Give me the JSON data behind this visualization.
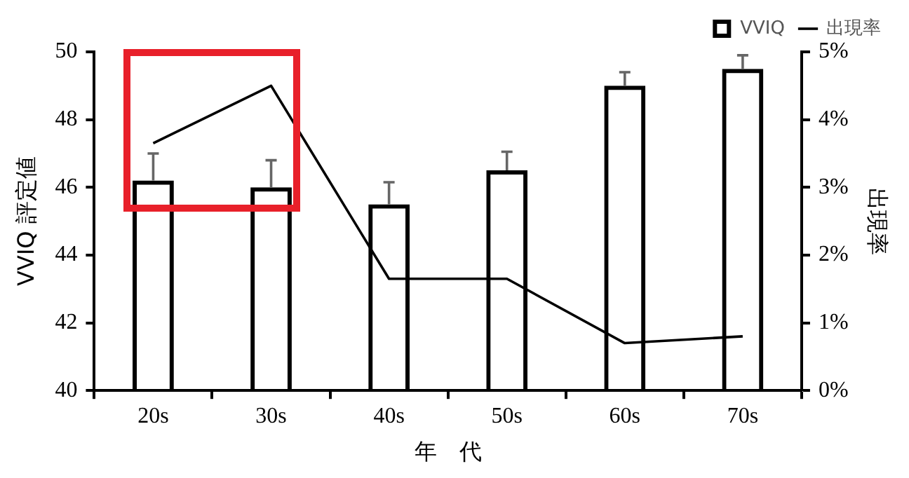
{
  "chart_data": {
    "type": "bar",
    "xlabel": "年　代",
    "ylabel": "VVIQ 評定値",
    "y2label": "出現率",
    "categories": [
      "20s",
      "30s",
      "40s",
      "50s",
      "60s",
      "70s"
    ],
    "series": [
      {
        "name": "VVIQ",
        "color": "#000000",
        "values": [
          46.2,
          46.0,
          45.5,
          46.5,
          49.0,
          49.5
        ],
        "errors": [
          [
            46.2,
            47.0
          ],
          [
            46.0,
            46.8
          ],
          [
            45.5,
            46.15
          ],
          [
            46.5,
            47.05
          ],
          [
            49.0,
            49.4
          ],
          [
            49.5,
            49.9
          ]
        ]
      },
      {
        "name": "出現率",
        "type": "line",
        "axis": "y2",
        "color": "#000000",
        "values": [
          3.65,
          4.5,
          1.65,
          1.65,
          0.7,
          0.8
        ]
      }
    ],
    "ylim": [
      40,
      50
    ],
    "yticks": [
      40,
      42,
      44,
      46,
      48,
      50
    ],
    "y2lim": [
      0,
      5
    ],
    "y2ticks": [
      {
        "value": 0,
        "label": "0%"
      },
      {
        "value": 1,
        "label": "1%"
      },
      {
        "value": 2,
        "label": "2%"
      },
      {
        "value": 3,
        "label": "3%"
      },
      {
        "value": 4,
        "label": "4%"
      },
      {
        "value": 5,
        "label": "5%"
      }
    ],
    "grid": false,
    "legend": "top",
    "marker": "none",
    "line_style": "solid"
  }
}
